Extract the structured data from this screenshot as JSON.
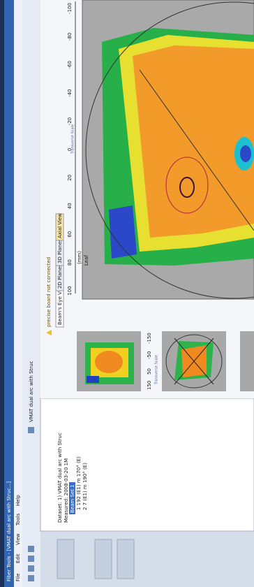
{
  "window": {
    "title": "Fiber Tools - [VMAT dual arc with Struc...]",
    "menu": [
      "File",
      "Edit",
      "View",
      "Tools",
      "Help"
    ],
    "toolbar_plan": "VMAT dual arc with Struc",
    "warning": "precise board not connected"
  },
  "tabs": [
    "Beam's Eye View",
    "2D Planes",
    "3D Planes",
    "Axial View"
  ],
  "tree": {
    "dataset": "Dataset: 1) VMAT dual arc with Struc",
    "measured": "Measured: 2008-03-20 1M",
    "selected": "Beam Set 1",
    "items": [
      "1  192 (E1) m 170° (E)",
      "2  7 (E1) m 190° (E)"
    ]
  },
  "thumbnails": {
    "label": "Transverse Scale",
    "ticks": [
      "150",
      "50",
      "-50",
      "-150"
    ]
  },
  "main_view": {
    "y_axis_label": "Leaf",
    "x_axis_label": "(mm)",
    "side_label": "Transverse Scale",
    "ticks": [
      "100",
      "80",
      "60",
      "40",
      "20",
      "0",
      "-20",
      "-40",
      "-60",
      "-80",
      "-100"
    ]
  }
}
